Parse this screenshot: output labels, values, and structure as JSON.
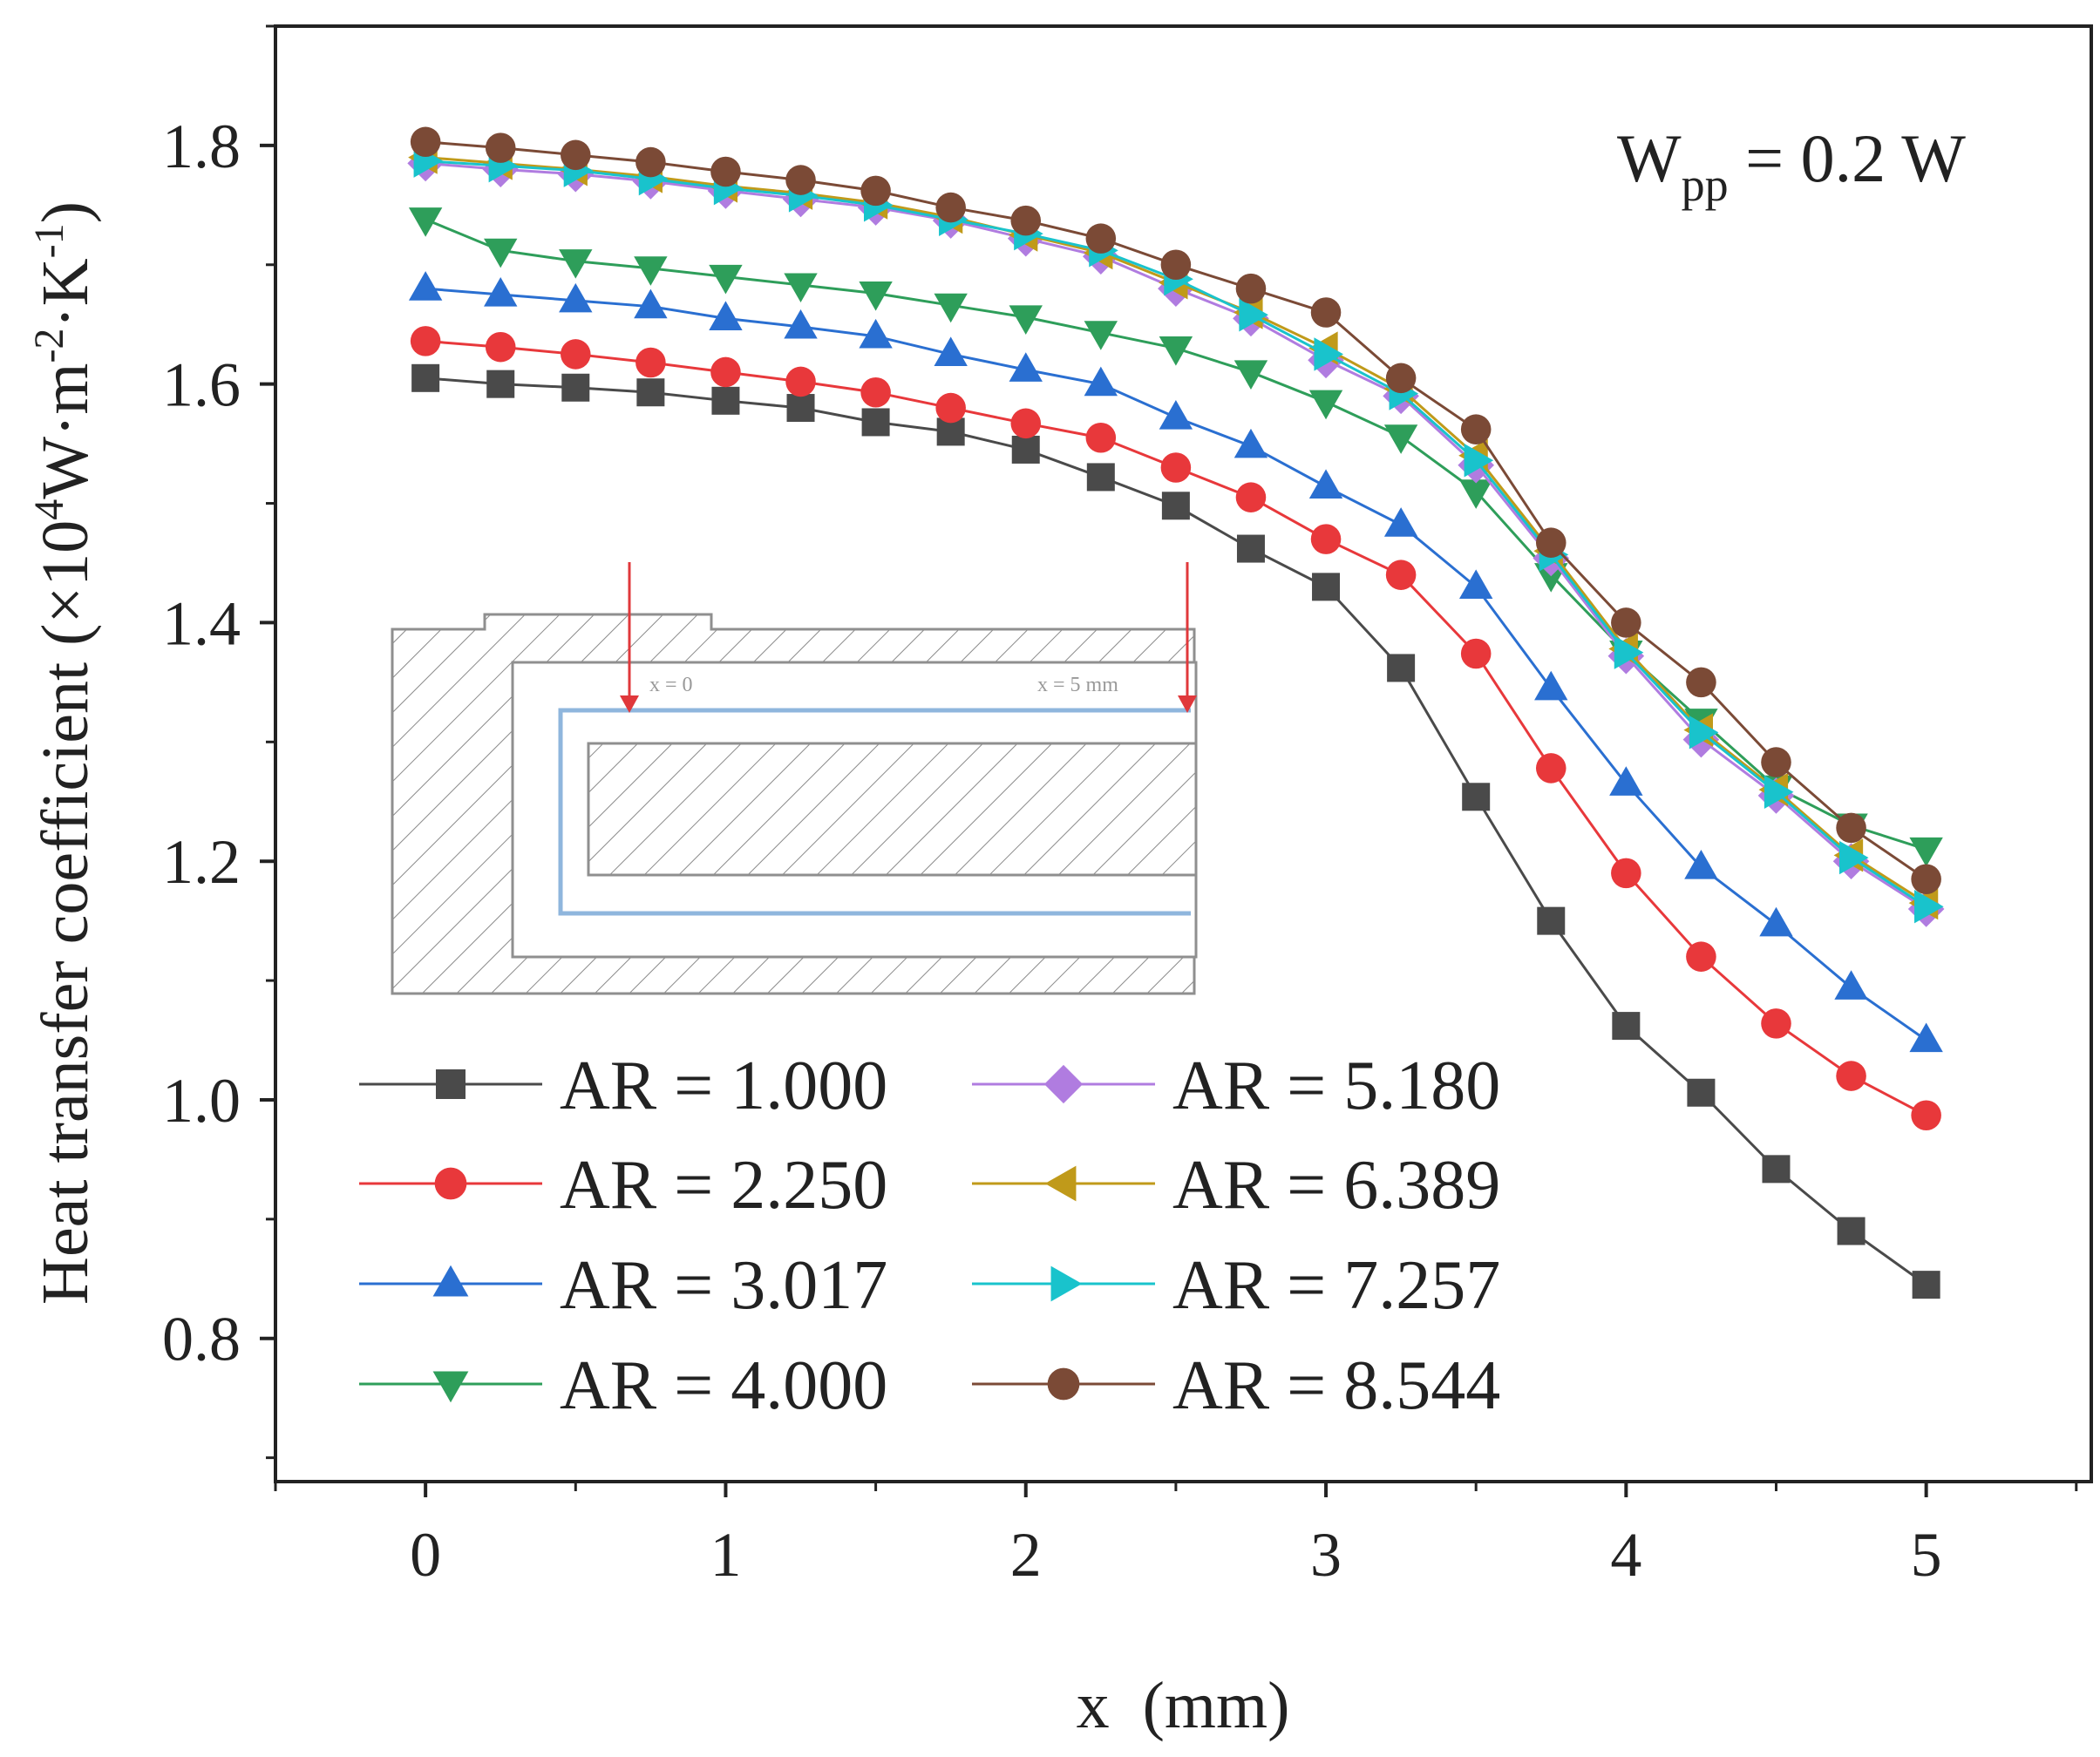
{
  "chart_data": {
    "type": "line",
    "title": "",
    "xlabel": "x  (mm)",
    "ylabel": "Heat transfer coefficient (×10",
    "ylabel_exp1": "4",
    "ylabel_mid": "W·m",
    "ylabel_exp2": "-2",
    "ylabel_mid2": "·K",
    "ylabel_exp3": "-1",
    "ylabel_end": ")",
    "annotation": {
      "main": "W",
      "sub": "pp",
      "rest": " = 0.2 W"
    },
    "xlim": [
      -0.5,
      5.55
    ],
    "ylim": [
      0.68,
      1.9
    ],
    "xticks": [
      0,
      1,
      2,
      3,
      4,
      5
    ],
    "xtick_labels": [
      "0",
      "1",
      "2",
      "3",
      "4",
      "5"
    ],
    "yticks": [
      0.8,
      1.0,
      1.2,
      1.4,
      1.6,
      1.8
    ],
    "ytick_labels": [
      "0.8",
      "1.0",
      "1.2",
      "1.4",
      "1.6",
      "1.8"
    ],
    "x": [
      0,
      0.25,
      0.5,
      0.75,
      1.0,
      1.25,
      1.5,
      1.75,
      2.0,
      2.25,
      2.5,
      2.75,
      3.0,
      3.25,
      3.5,
      3.75,
      4.0,
      4.25,
      4.5,
      4.75,
      5.0
    ],
    "legend_placement": "bottom-left, two columns",
    "series": [
      {
        "name": "AR = 1.000",
        "color": "#4a4a4a",
        "marker": "square",
        "values": [
          1.605,
          1.6,
          1.597,
          1.593,
          1.586,
          1.58,
          1.568,
          1.56,
          1.545,
          1.522,
          1.498,
          1.462,
          1.43,
          1.362,
          1.254,
          1.15,
          1.062,
          1.006,
          0.942,
          0.89,
          0.845
        ]
      },
      {
        "name": "AR = 2.250",
        "color": "#e8383b",
        "marker": "circle",
        "values": [
          1.636,
          1.631,
          1.625,
          1.618,
          1.61,
          1.602,
          1.593,
          1.58,
          1.567,
          1.555,
          1.53,
          1.505,
          1.47,
          1.44,
          1.374,
          1.278,
          1.19,
          1.12,
          1.064,
          1.02,
          0.987
        ]
      },
      {
        "name": "AR = 3.017",
        "color": "#2a6fd1",
        "marker": "triangle-up",
        "values": [
          1.68,
          1.675,
          1.67,
          1.665,
          1.655,
          1.648,
          1.64,
          1.625,
          1.612,
          1.6,
          1.572,
          1.548,
          1.514,
          1.482,
          1.43,
          1.345,
          1.265,
          1.195,
          1.147,
          1.094,
          1.05
        ]
      },
      {
        "name": "AR = 4.000",
        "color": "#2e9e5a",
        "marker": "triangle-down",
        "values": [
          1.738,
          1.712,
          1.703,
          1.697,
          1.69,
          1.683,
          1.676,
          1.666,
          1.656,
          1.643,
          1.63,
          1.61,
          1.585,
          1.556,
          1.51,
          1.44,
          1.375,
          1.318,
          1.262,
          1.23,
          1.21
        ]
      },
      {
        "name": "AR = 5.180",
        "color": "#b07ce0",
        "marker": "diamond",
        "values": [
          1.785,
          1.78,
          1.776,
          1.77,
          1.762,
          1.755,
          1.748,
          1.737,
          1.722,
          1.707,
          1.68,
          1.655,
          1.62,
          1.59,
          1.532,
          1.454,
          1.372,
          1.302,
          1.255,
          1.2,
          1.16
        ]
      },
      {
        "name": "AR = 6.389",
        "color": "#c09a1a",
        "marker": "triangle-left",
        "values": [
          1.79,
          1.785,
          1.78,
          1.774,
          1.766,
          1.76,
          1.752,
          1.74,
          1.725,
          1.71,
          1.685,
          1.66,
          1.63,
          1.596,
          1.54,
          1.46,
          1.378,
          1.31,
          1.26,
          1.205,
          1.165
        ]
      },
      {
        "name": "AR = 7.257",
        "color": "#19c3cc",
        "marker": "triangle-right",
        "values": [
          1.787,
          1.783,
          1.779,
          1.772,
          1.764,
          1.758,
          1.75,
          1.738,
          1.726,
          1.712,
          1.688,
          1.658,
          1.625,
          1.592,
          1.536,
          1.457,
          1.375,
          1.308,
          1.258,
          1.203,
          1.162
        ]
      },
      {
        "name": "AR = 8.544",
        "color": "#7b4a36",
        "marker": "circle",
        "values": [
          1.803,
          1.798,
          1.792,
          1.786,
          1.778,
          1.771,
          1.762,
          1.748,
          1.737,
          1.722,
          1.7,
          1.68,
          1.66,
          1.605,
          1.562,
          1.467,
          1.4,
          1.35,
          1.283,
          1.228,
          1.185
        ]
      }
    ],
    "inset": {
      "description_labels": [
        "x = 0",
        "x = 5 mm"
      ]
    }
  }
}
